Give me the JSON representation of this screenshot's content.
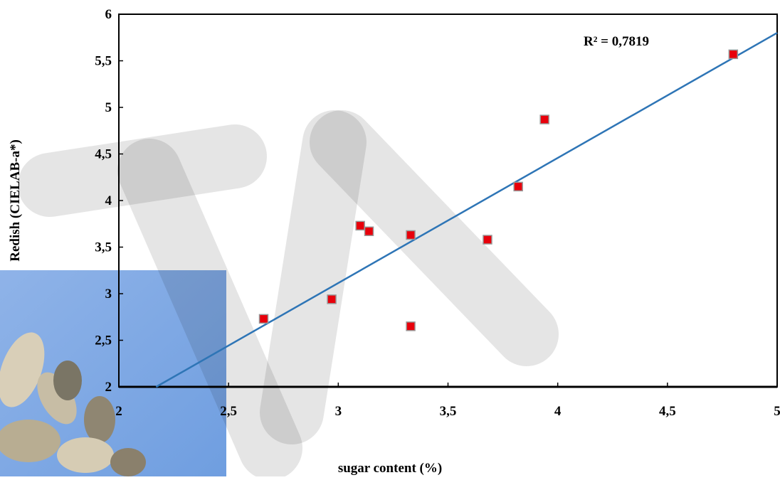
{
  "chart_data": {
    "type": "scatter",
    "x_label": "sugar content (%)",
    "y_label": "Redish (CIELAB-a*)",
    "annotation": "R² = 0,7819",
    "series": [
      {
        "color": "#e8000b",
        "x": [
          2.66,
          2.97,
          3.1,
          3.14,
          3.33,
          3.33,
          3.68,
          3.82,
          3.94,
          4.8
        ],
        "values": [
          2.73,
          2.94,
          3.73,
          3.67,
          3.63,
          2.65,
          3.58,
          4.15,
          4.87,
          5.57
        ]
      }
    ],
    "trendline": {
      "color": "#2e75b6",
      "x": [
        2.17,
        5
      ],
      "values": [
        2,
        5.8
      ]
    },
    "xlim": [
      2,
      5
    ],
    "xticks": [
      2,
      {
        "value": 2.5,
        "label": "2,5"
      },
      3,
      {
        "value": 3.5,
        "label": "3,5"
      },
      4,
      {
        "value": 4.5,
        "label": "4,5"
      },
      5
    ],
    "ylim": [
      2,
      6
    ],
    "yticks": [
      2,
      {
        "value": 2.5,
        "label": "2,5"
      },
      3,
      {
        "value": 3.5,
        "label": "3,5"
      },
      4,
      {
        "value": 4.5,
        "label": "4,5"
      },
      5,
      {
        "value": 5.5,
        "label": "5,5"
      },
      6
    ]
  }
}
